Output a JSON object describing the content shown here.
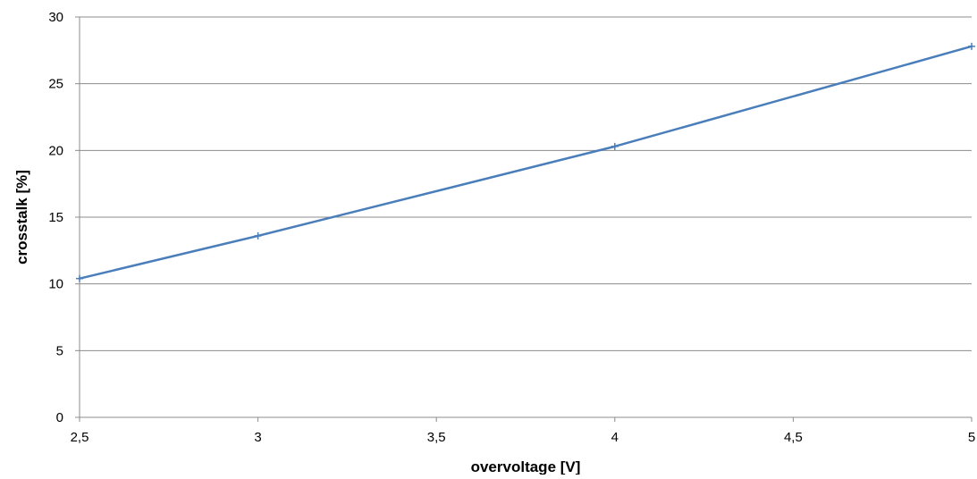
{
  "chart_data": {
    "type": "line",
    "title": "",
    "xlabel": "overvoltage [V]",
    "ylabel": "crosstalk [%]",
    "xlim": [
      2.5,
      5
    ],
    "ylim": [
      0,
      30
    ],
    "x_ticks": [
      2.5,
      3,
      3.5,
      4,
      4.5,
      5
    ],
    "x_tick_labels": [
      "2,5",
      "3",
      "3,5",
      "4",
      "4,5",
      "5"
    ],
    "y_ticks": [
      0,
      5,
      10,
      15,
      20,
      25,
      30
    ],
    "y_tick_labels": [
      "0",
      "5",
      "10",
      "15",
      "20",
      "25",
      "30"
    ],
    "grid": "horizontal",
    "legend": "none",
    "series": [
      {
        "color": "#4a7ebb",
        "marker": "plus",
        "x": [
          2.5,
          3,
          4,
          5
        ],
        "y": [
          10.4,
          13.6,
          20.3,
          27.8
        ]
      }
    ]
  }
}
